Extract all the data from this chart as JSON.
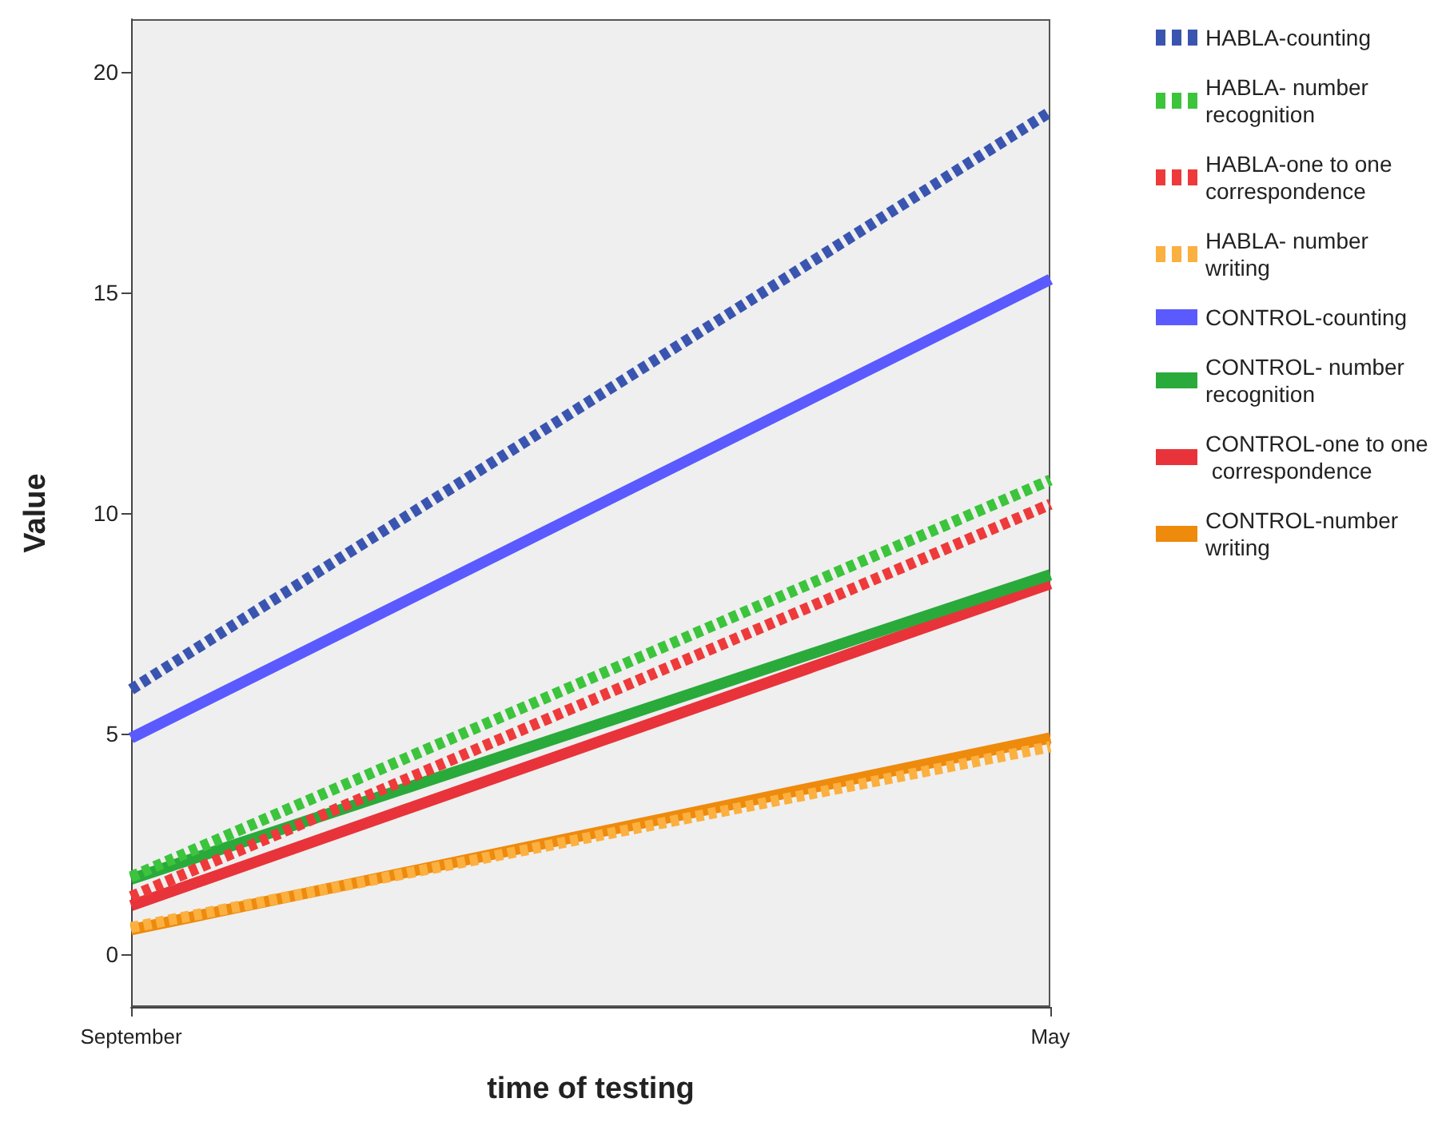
{
  "chart_data": {
    "type": "line",
    "xlabel": "time of testing",
    "ylabel": "Value",
    "categories": [
      "September",
      "May"
    ],
    "series": [
      {
        "name": "HABLA-counting",
        "color": "#3a55b0",
        "values": [
          6.0,
          19.1
        ],
        "line_style": "dotted"
      },
      {
        "name": "HABLA- number recognition",
        "color": "#3cc43c",
        "values": [
          1.75,
          10.75
        ],
        "line_style": "dotted"
      },
      {
        "name": "HABLA-one to one correspondence",
        "color": "#ee3a3a",
        "values": [
          1.3,
          10.2
        ],
        "line_style": "dotted"
      },
      {
        "name": "HABLA- number writing",
        "color": "#fbb040",
        "values": [
          0.6,
          4.7
        ],
        "line_style": "dotted"
      },
      {
        "name": "CONTROL-counting",
        "color": "#5a5aff",
        "values": [
          4.9,
          15.3
        ],
        "line_style": "solid"
      },
      {
        "name": "CONTROL- number recognition",
        "color": "#2aaa3a",
        "values": [
          1.7,
          8.6
        ],
        "line_style": "solid"
      },
      {
        "name": "CONTROL-one to one correspondence",
        "color": "#e8333a",
        "values": [
          1.1,
          8.4
        ],
        "line_style": "solid"
      },
      {
        "name": "CONTROL-number writing",
        "color": "#ee8a0c",
        "values": [
          0.55,
          4.9
        ],
        "line_style": "solid"
      }
    ],
    "ylim": [
      -1.2,
      21.2
    ],
    "yticks": [
      0,
      5,
      10,
      15,
      20
    ],
    "grid": false,
    "legend": "right",
    "marker": "none"
  }
}
